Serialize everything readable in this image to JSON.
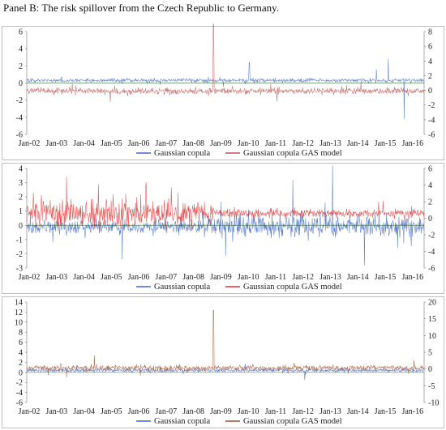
{
  "caption": "Panel B: The risk spillover from the Czech Republic to Germany.",
  "colors": {
    "gaussian": "#4169c8",
    "gas": "#d9534f",
    "gas_dark": "#8a7a3a",
    "purple": "#7a3fb8",
    "frame": "#bfbfbf",
    "zero_line": "#333333"
  },
  "chart_data": [
    {
      "type": "line",
      "x_tick_labels": [
        "Jan-02",
        "Jan-03",
        "Jan-04",
        "Jan-05",
        "Jan-06",
        "Jan-07",
        "Jan-08",
        "Jan-09",
        "Jan-10",
        "Jan-11",
        "Jan-12",
        "Jan-13",
        "Jan-14",
        "Jan-15",
        "Jan-16"
      ],
      "left_axis": {
        "ticks": [
          "6",
          "4",
          "2",
          "0",
          "-2",
          "-4",
          "-6"
        ],
        "ylim": [
          -6,
          6
        ]
      },
      "right_axis": {
        "ticks": [
          "8",
          "6",
          "4",
          "2",
          "0",
          "-2",
          "-4",
          "-6"
        ],
        "ylim": [
          -6,
          8
        ]
      },
      "series": [
        {
          "name": "Gaussian copula",
          "axis": "left",
          "color": "#4169c8",
          "base": 0.3,
          "noise": 0.18,
          "spikes": [
            [
              0.91,
              2.8
            ],
            [
              0.88,
              1.6
            ],
            [
              0.95,
              -4.2
            ],
            [
              0.56,
              2.4
            ]
          ]
        },
        {
          "name": "Gaussian copula GAS model",
          "axis": "right",
          "color": "#c0504d",
          "base": -0.1,
          "noise": 0.35,
          "spikes": [
            [
              0.47,
              9.0
            ],
            [
              0.21,
              -1.6
            ],
            [
              0.63,
              -1.5
            ]
          ]
        }
      ],
      "grid": false,
      "legend": "bottom-center"
    },
    {
      "type": "line",
      "x_tick_labels": [
        "Jan-02",
        "Jan-03",
        "Jan-04",
        "Jan-05",
        "Jan-06",
        "Jan-07",
        "Jan-08",
        "Jan-09",
        "Jan-10",
        "Jan-11",
        "Jan-12",
        "Jan-13",
        "Jan-14",
        "Jan-15",
        "Jan-16"
      ],
      "left_axis": {
        "ticks": [
          "4",
          "3",
          "2",
          "1",
          "0",
          "-1",
          "-2",
          "-3"
        ],
        "ylim": [
          -3,
          4
        ]
      },
      "right_axis": {
        "ticks": [
          "6",
          "4",
          "2",
          "0",
          "-2",
          "-4",
          "-6"
        ],
        "ylim": [
          -6,
          6
        ]
      },
      "series": [
        {
          "name": "Gaussian copula",
          "axis": "left",
          "color": "#4169c8",
          "base": -0.1,
          "noise": 0.55,
          "spikes": [
            [
              0.77,
              4.2
            ],
            [
              0.67,
              3.2
            ],
            [
              0.85,
              -2.8
            ],
            [
              0.24,
              -2.4
            ]
          ]
        },
        {
          "name": "Gaussian copula GAS model",
          "axis": "right",
          "color": "#e03030",
          "base": 0.6,
          "noise": 1.3,
          "spikes": [
            [
              0.18,
              4.1
            ],
            [
              0.1,
              5.0
            ],
            [
              0.3,
              4.3
            ]
          ]
        }
      ],
      "grid": false,
      "legend": "bottom-center"
    },
    {
      "type": "line",
      "x_tick_labels": [
        "Jan-02",
        "Jan-03",
        "Jan-04",
        "Jan-05",
        "Jan-06",
        "Jan-07",
        "Jan-08",
        "Jan-09",
        "Jan-10",
        "Jan-11",
        "Jan-12",
        "Jan-13",
        "Jan-14",
        "Jan-15",
        "Jan-16"
      ],
      "left_axis": {
        "ticks": [
          "14",
          "12",
          "10",
          "8",
          "6",
          "4",
          "2",
          "0",
          "-2",
          "-4",
          "-6"
        ],
        "ylim": [
          -6,
          14
        ]
      },
      "right_axis": {
        "ticks": [
          "20",
          "15",
          "10",
          "5",
          "0",
          "-5",
          "-10"
        ],
        "ylim": [
          -10,
          20
        ]
      },
      "series": [
        {
          "name": "Gaussian copula",
          "axis": "left",
          "color": "#4169c8",
          "base": 0.4,
          "noise": 0.3,
          "spikes": [
            [
              0.55,
              1.6
            ],
            [
              0.7,
              -1.5
            ]
          ]
        },
        {
          "name": "Gaussian copula GAS model",
          "axis": "right",
          "color": "#a0522d",
          "base": 0.3,
          "noise": 0.7,
          "spikes": [
            [
              0.47,
              17.5
            ],
            [
              0.17,
              4.0
            ],
            [
              0.1,
              -2.5
            ]
          ]
        }
      ],
      "grid": false,
      "legend": "bottom-center"
    }
  ]
}
